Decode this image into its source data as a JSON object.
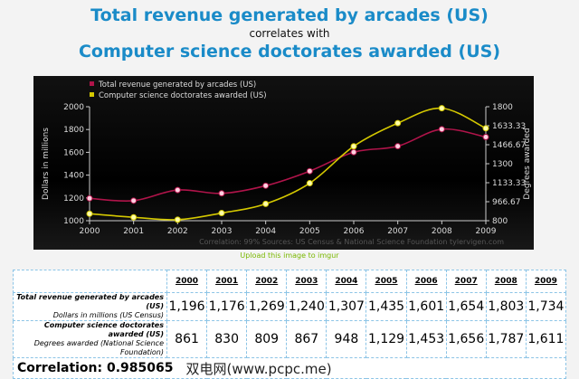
{
  "title": {
    "line1": "Total revenue generated by arcades (US)",
    "line2": "correlates with",
    "line3": "Computer science doctorates awarded (US)"
  },
  "chart_data": {
    "type": "line",
    "x": [
      2000,
      2001,
      2002,
      2003,
      2004,
      2005,
      2006,
      2007,
      2008,
      2009
    ],
    "series": [
      {
        "name": "Total revenue generated by arcades (US)",
        "axis": "left",
        "color": "#b0144a",
        "values": [
          1196,
          1176,
          1269,
          1240,
          1307,
          1435,
          1601,
          1654,
          1803,
          1734
        ]
      },
      {
        "name": "Computer science doctorates awarded (US)",
        "axis": "right",
        "color": "#d4c800",
        "values": [
          861,
          830,
          809,
          867,
          948,
          1129,
          1453,
          1656,
          1787,
          1611
        ]
      }
    ],
    "ylabel": "Dollars in millions",
    "y2label": "Degrees awarded",
    "ylim": [
      1000,
      2000
    ],
    "y2lim": [
      800,
      1800
    ],
    "yticks": [
      "1000",
      "1200",
      "1400",
      "1600",
      "1800",
      "2000"
    ],
    "y2ticks": [
      "800",
      "966.67",
      "1133.33",
      "1300",
      "1466.67",
      "1633.33",
      "1800"
    ],
    "legend_position": "top-left",
    "footer": "Correlation: 99%    Sources: US Census & National Science Foundation    tylervigen.com"
  },
  "upload_link": "Upload this image to imgur",
  "table": {
    "years": [
      "2000",
      "2001",
      "2002",
      "2003",
      "2004",
      "2005",
      "2006",
      "2007",
      "2008",
      "2009"
    ],
    "rows": [
      {
        "label": "Total revenue generated by arcades (US)",
        "sub": "Dollars in millions (US Census)",
        "values": [
          "1,196",
          "1,176",
          "1,269",
          "1,240",
          "1,307",
          "1,435",
          "1,601",
          "1,654",
          "1,803",
          "1,734"
        ]
      },
      {
        "label": "Computer science doctorates awarded (US)",
        "sub": "Degrees awarded (National Science Foundation)",
        "values": [
          "861",
          "830",
          "809",
          "867",
          "948",
          "1,129",
          "1,453",
          "1,656",
          "1,787",
          "1,611"
        ]
      }
    ],
    "correlation": "Correlation: 0.985065"
  },
  "watermark": "双电网(www.pcpc.me)"
}
